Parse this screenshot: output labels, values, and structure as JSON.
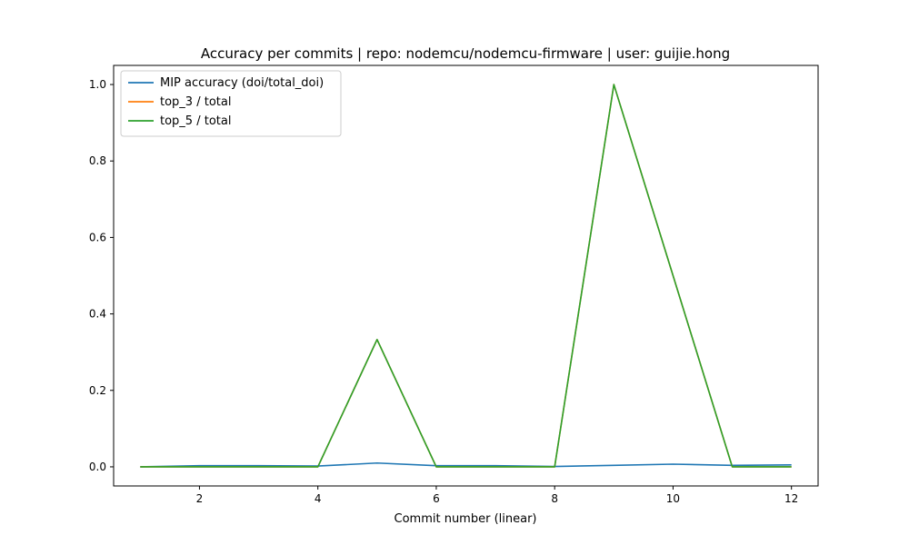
{
  "chart_data": {
    "type": "line",
    "title": "Accuracy per commits | repo: nodemcu/nodemcu-firmware | user: guijie.hong",
    "xlabel": "Commit number (linear)",
    "ylabel": "",
    "xlim": [
      0.55,
      12.45
    ],
    "ylim": [
      -0.05,
      1.05
    ],
    "xticks": [
      2,
      4,
      6,
      8,
      10,
      12
    ],
    "yticks": [
      0.0,
      0.2,
      0.4,
      0.6,
      0.8,
      1.0
    ],
    "xtick_labels": [
      "2",
      "4",
      "6",
      "8",
      "10",
      "12"
    ],
    "ytick_labels": [
      "0.0",
      "0.2",
      "0.4",
      "0.6",
      "0.8",
      "1.0"
    ],
    "grid": false,
    "legend_position": "upper-left",
    "x": [
      1,
      2,
      3,
      4,
      5,
      6,
      7,
      8,
      9,
      10,
      11,
      12
    ],
    "series": [
      {
        "name": "MIP accuracy (doi/total_doi)",
        "color": "#1f77b4",
        "values": [
          0.0,
          0.003,
          0.003,
          0.002,
          0.01,
          0.003,
          0.003,
          0.001,
          0.004,
          0.007,
          0.004,
          0.005
        ]
      },
      {
        "name": "top_3 / total",
        "color": "#ff7f0e",
        "values": [
          0.0,
          0.0,
          0.0,
          0.0,
          0.333,
          0.0,
          0.0,
          0.0,
          1.0,
          0.5,
          0.0,
          0.0
        ]
      },
      {
        "name": "top_5 / total",
        "color": "#2ca02c",
        "values": [
          0.0,
          0.0,
          0.0,
          0.0,
          0.333,
          0.0,
          0.0,
          0.0,
          1.0,
          0.5,
          0.0,
          0.0
        ]
      }
    ]
  }
}
